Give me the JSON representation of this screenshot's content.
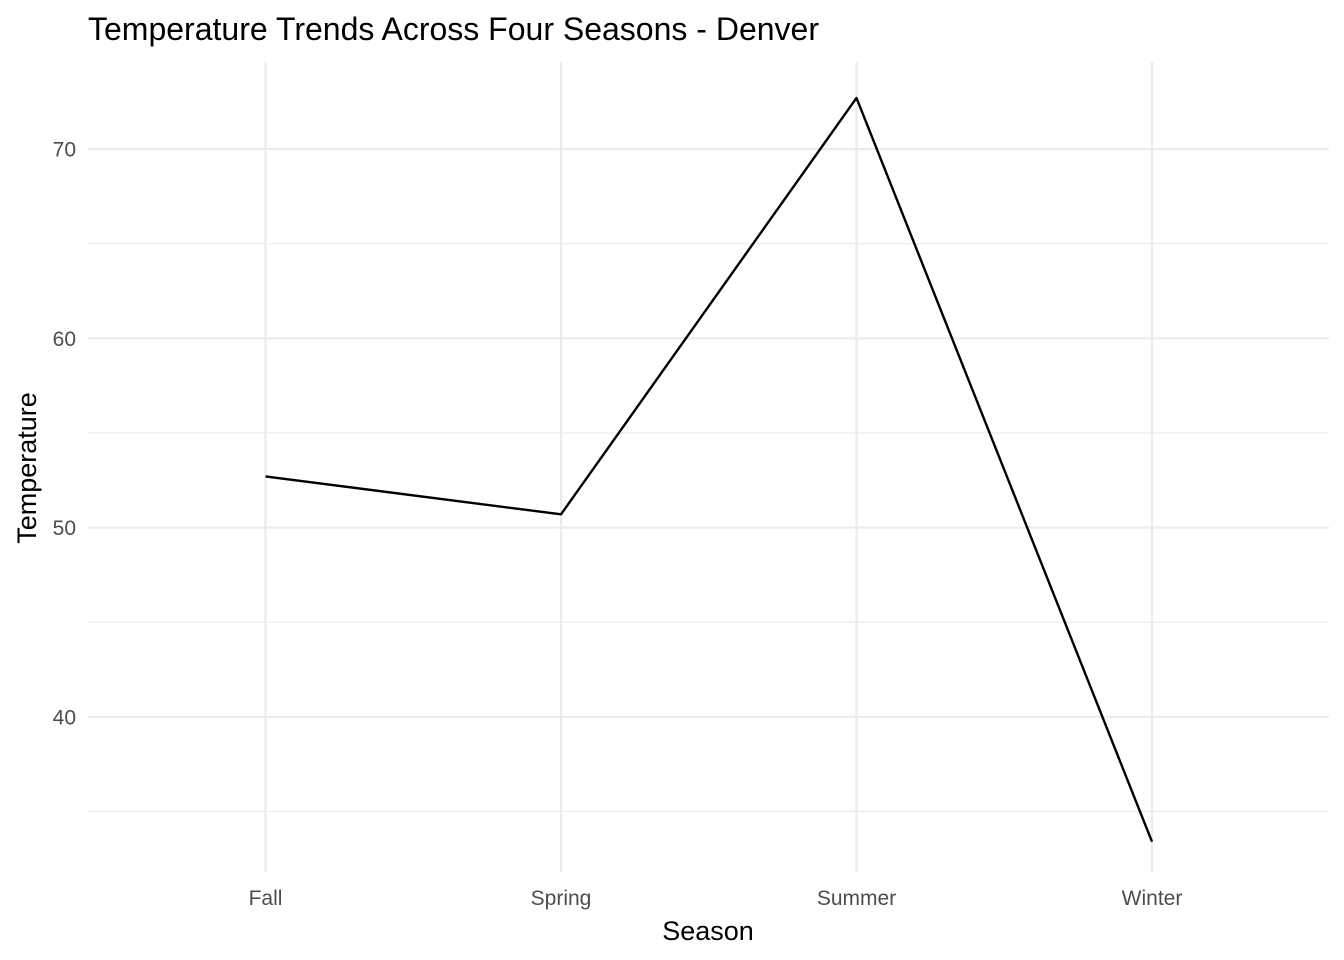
{
  "chart_data": {
    "type": "line",
    "title": "Temperature Trends Across Four Seasons - Denver",
    "xlabel": "Season",
    "ylabel": "Temperature",
    "categories": [
      "Fall",
      "Spring",
      "Summer",
      "Winter"
    ],
    "series": [
      {
        "values": [
          52.7,
          50.7,
          72.7,
          33.4
        ]
      }
    ],
    "ylim": [
      31.8,
      74.6
    ],
    "y_ticks": [
      40,
      50,
      60,
      70
    ],
    "y_minor_ticks": [
      35,
      45,
      55,
      65
    ],
    "grid": true,
    "legend": "none",
    "colors": {
      "line": "#000000",
      "grid": "#ebebeb",
      "tick_text": "#4d4d4d",
      "background": "#ffffff"
    }
  }
}
